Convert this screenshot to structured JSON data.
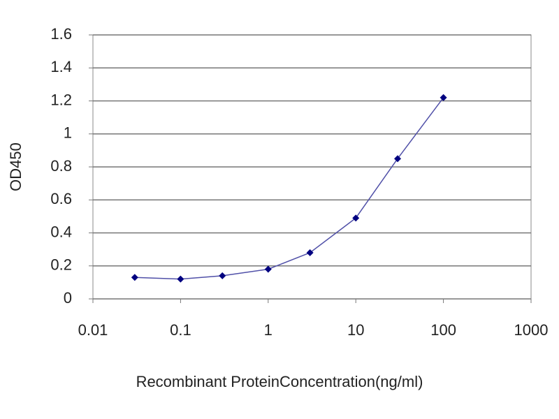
{
  "chart_data": {
    "type": "line",
    "xlabel": "Recombinant ProteinConcentration(ng/ml)",
    "ylabel": "OD450",
    "x": [
      0.03,
      0.1,
      0.3,
      1,
      3,
      10,
      30,
      100
    ],
    "series": [
      {
        "color": "#000080",
        "line_color": "#5050a8",
        "values": [
          0.13,
          0.12,
          0.14,
          0.18,
          0.28,
          0.49,
          0.85,
          1.22
        ]
      }
    ],
    "xscale": "log",
    "xlim": [
      0.01,
      1000
    ],
    "xticks": [
      0.01,
      0.1,
      1,
      10,
      100,
      1000
    ],
    "ylim": [
      0,
      1.6
    ],
    "yticks": [
      0,
      0.2,
      0.4,
      0.6,
      0.8,
      1,
      1.2,
      1.4,
      1.6
    ],
    "grid": true
  }
}
